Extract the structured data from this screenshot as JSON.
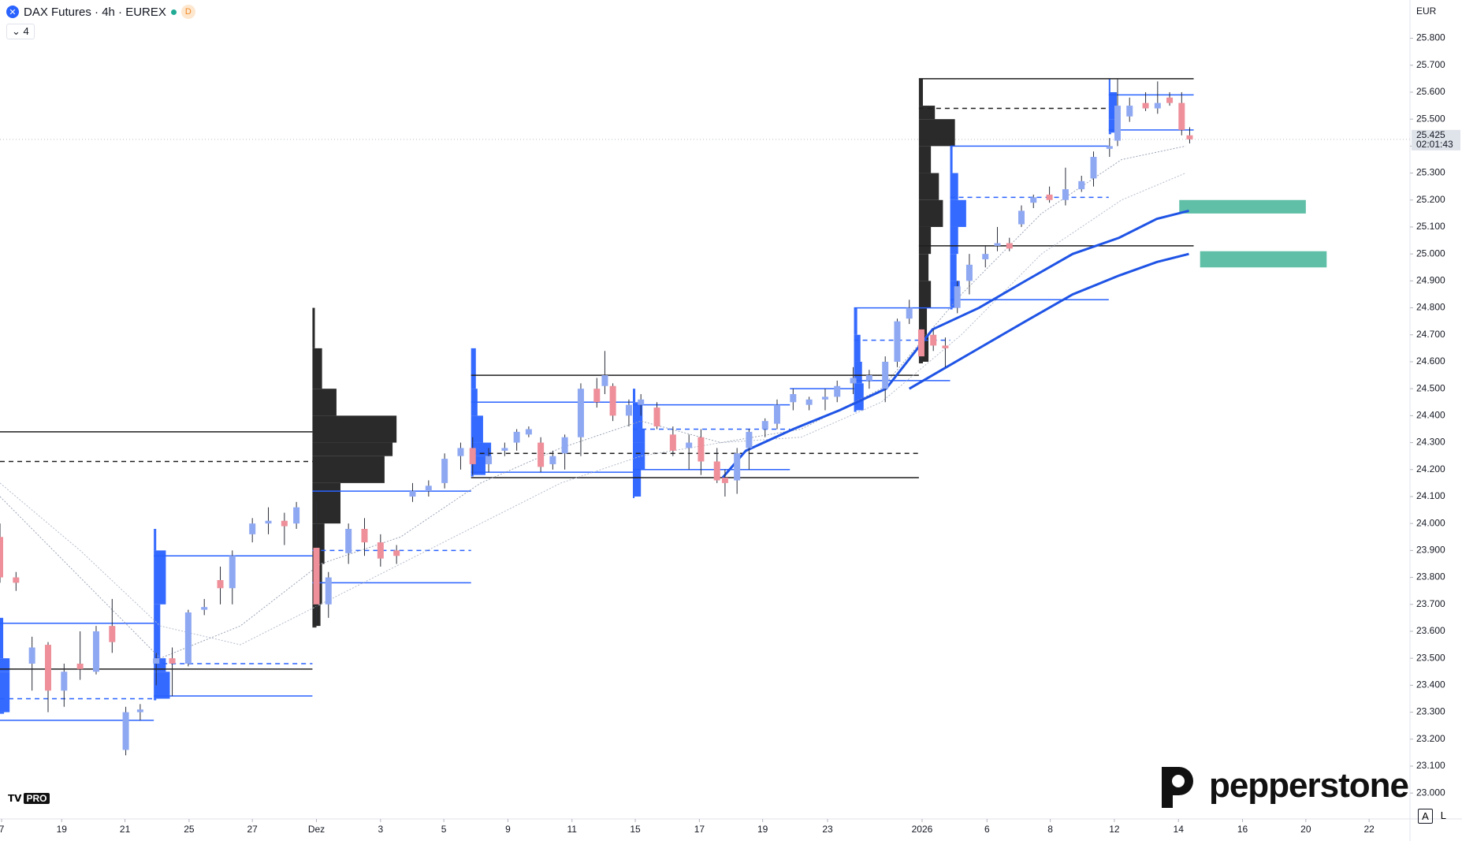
{
  "header": {
    "symbol": "DAX Futures · 4h · EUREX",
    "session": "D",
    "indicators": "4"
  },
  "price_axis": {
    "currency": "EUR",
    "last_price": {
      "value": 25425,
      "label": "25.425"
    },
    "countdown": "02:01:43"
  },
  "branding": {
    "broker": "pepperstone",
    "platform": "PRO"
  },
  "scale_buttons": [
    "A",
    "L"
  ],
  "chart_data": {
    "type": "candlestick",
    "ylim": [
      22904,
      25942
    ],
    "xlim": [
      0,
      176
    ],
    "yticks": [
      {
        "value": 23000,
        "label": "23.000"
      },
      {
        "value": 23100,
        "label": "23.100"
      },
      {
        "value": 23200,
        "label": "23.200"
      },
      {
        "value": 23300,
        "label": "23.300"
      },
      {
        "value": 23400,
        "label": "23.400"
      },
      {
        "value": 23500,
        "label": "23.500"
      },
      {
        "value": 23600,
        "label": "23.600"
      },
      {
        "value": 23700,
        "label": "23.700"
      },
      {
        "value": 23800,
        "label": "23.800"
      },
      {
        "value": 23900,
        "label": "23.900"
      },
      {
        "value": 24000,
        "label": "24.000"
      },
      {
        "value": 24100,
        "label": "24.100"
      },
      {
        "value": 24200,
        "label": "24.200"
      },
      {
        "value": 24300,
        "label": "24.300"
      },
      {
        "value": 24400,
        "label": "24.400"
      },
      {
        "value": 24500,
        "label": "24.500"
      },
      {
        "value": 24600,
        "label": "24.600"
      },
      {
        "value": 24700,
        "label": "24.700"
      },
      {
        "value": 24800,
        "label": "24.800"
      },
      {
        "value": 24900,
        "label": "24.900"
      },
      {
        "value": 25000,
        "label": "25.000"
      },
      {
        "value": 25100,
        "label": "25.100"
      },
      {
        "value": 25200,
        "label": "25.200"
      },
      {
        "value": 25300,
        "label": "25.300"
      },
      {
        "value": 25400,
        "label": "25.400"
      },
      {
        "value": 25500,
        "label": "25.500"
      },
      {
        "value": 25600,
        "label": "25.600"
      },
      {
        "value": 25700,
        "label": "25.700"
      },
      {
        "value": 25800,
        "label": "25.800"
      }
    ],
    "xticks": [
      {
        "value": 0.2,
        "label": "7"
      },
      {
        "value": 7.7,
        "label": "19"
      },
      {
        "value": 15.6,
        "label": "21"
      },
      {
        "value": 23.6,
        "label": "25"
      },
      {
        "value": 31.5,
        "label": "27"
      },
      {
        "value": 39.5,
        "label": "Dez"
      },
      {
        "value": 47.5,
        "label": "3"
      },
      {
        "value": 55.4,
        "label": "5"
      },
      {
        "value": 63.4,
        "label": "9"
      },
      {
        "value": 71.4,
        "label": "11"
      },
      {
        "value": 79.3,
        "label": "15"
      },
      {
        "value": 87.3,
        "label": "17"
      },
      {
        "value": 95.2,
        "label": "19"
      },
      {
        "value": 103.3,
        "label": "23"
      },
      {
        "value": 115.1,
        "label": "2026"
      },
      {
        "value": 123.2,
        "label": "6"
      },
      {
        "value": 131.1,
        "label": "8"
      },
      {
        "value": 139.1,
        "label": "12"
      },
      {
        "value": 147.1,
        "label": "14"
      },
      {
        "value": 155.1,
        "label": "16"
      },
      {
        "value": 163,
        "label": "20"
      },
      {
        "value": 170.9,
        "label": "22"
      }
    ],
    "up_color": "#8fa8f2",
    "down_color": "#ee8f9a",
    "x": [
      0,
      2,
      4,
      6,
      8,
      10,
      12,
      14,
      15.7,
      17.5,
      19.5,
      21.5,
      23.5,
      25.5,
      27.5,
      29,
      31.5,
      33.5,
      35.5,
      37,
      39.5,
      41,
      43.5,
      45.5,
      47.5,
      49.5,
      51.5,
      53.5,
      55.5,
      57.5,
      59,
      61,
      63,
      64.5,
      66,
      67.5,
      69,
      70.5,
      72.5,
      74.5,
      75.5,
      76.5,
      78.5,
      80,
      82,
      84,
      86,
      87.5,
      89.5,
      90.5,
      92,
      93.5,
      95.5,
      97,
      99,
      101,
      103,
      104.5,
      106.5,
      108.5,
      110.5,
      112,
      113.5,
      115,
      116.5,
      118,
      119.5,
      121,
      123,
      124.5,
      126,
      127.5,
      129,
      131,
      133,
      135,
      136.5,
      138.5,
      139.5,
      141,
      143,
      144.5,
      146,
      147.5,
      148.5
    ],
    "open": [
      23950,
      23800,
      23480,
      23550,
      23380,
      23480,
      23450,
      23620,
      23160,
      23300,
      23480,
      23500,
      23480,
      23680,
      23790,
      23760,
      23960,
      24000,
      24010,
      24000,
      23910,
      23700,
      23890,
      23980,
      23930,
      23900,
      24100,
      24120,
      24150,
      24250,
      24280,
      24220,
      24270,
      24300,
      24330,
      24300,
      24220,
      24260,
      24320,
      24500,
      24510,
      24510,
      24400,
      24440,
      24430,
      24330,
      24280,
      24320,
      24230,
      24170,
      24160,
      24280,
      24350,
      24370,
      24450,
      24440,
      24460,
      24470,
      24520,
      24530,
      24500,
      24600,
      24760,
      24720,
      24700,
      24660,
      24800,
      24900,
      24980,
      25030,
      25040,
      25110,
      25190,
      25220,
      25200,
      25240,
      25280,
      25390,
      25420,
      25510,
      25560,
      25540,
      25580,
      25560,
      25440
    ],
    "high": [
      24000,
      23820,
      23580,
      23560,
      23480,
      23600,
      23620,
      23720,
      23320,
      23330,
      23520,
      23540,
      23680,
      23720,
      23840,
      23900,
      24020,
      24060,
      24040,
      24080,
      24080,
      23820,
      24000,
      24020,
      23960,
      23920,
      24150,
      24160,
      24260,
      24300,
      24320,
      24280,
      24300,
      24350,
      24360,
      24320,
      24270,
      24330,
      24520,
      24540,
      24640,
      24520,
      24460,
      24480,
      24450,
      24360,
      24330,
      24350,
      24280,
      24200,
      24280,
      24350,
      24390,
      24460,
      24500,
      24470,
      24500,
      24530,
      24580,
      24570,
      24620,
      24760,
      24830,
      24740,
      24720,
      24690,
      24900,
      25000,
      25030,
      25100,
      25060,
      25180,
      25220,
      25250,
      25320,
      25290,
      25380,
      25430,
      25650,
      25580,
      25600,
      25640,
      25600,
      25600,
      25470
    ],
    "low": [
      23780,
      23750,
      23380,
      23300,
      23320,
      23420,
      23440,
      23520,
      23140,
      23270,
      23400,
      23360,
      23470,
      23660,
      23700,
      23700,
      23930,
      23960,
      23920,
      23980,
      23630,
      23650,
      23850,
      23880,
      23840,
      23850,
      24080,
      24100,
      24130,
      24200,
      24180,
      24190,
      24250,
      24270,
      24320,
      24190,
      24200,
      24200,
      24250,
      24430,
      24480,
      24380,
      24360,
      24400,
      24350,
      24250,
      24200,
      24180,
      24150,
      24100,
      24110,
      24200,
      24320,
      24350,
      24420,
      24420,
      24420,
      24450,
      24480,
      24500,
      24450,
      24580,
      24740,
      24600,
      24640,
      24580,
      24780,
      24850,
      24950,
      25010,
      25010,
      25100,
      25170,
      25190,
      25180,
      25230,
      25250,
      25360,
      25400,
      25490,
      25530,
      25520,
      25550,
      25440,
      25410
    ],
    "close": [
      23800,
      23780,
      23540,
      23380,
      23450,
      23460,
      23600,
      23560,
      23300,
      23310,
      23500,
      23480,
      23670,
      23690,
      23760,
      23880,
      24000,
      24010,
      23990,
      24060,
      23700,
      23800,
      23980,
      23930,
      23870,
      23880,
      24120,
      24140,
      24240,
      24280,
      24220,
      24250,
      24280,
      24340,
      24350,
      24210,
      24250,
      24320,
      24500,
      24450,
      24550,
      24400,
      24440,
      24460,
      24360,
      24270,
      24300,
      24230,
      24160,
      24150,
      24260,
      24340,
      24380,
      24440,
      24480,
      24460,
      24470,
      24510,
      24540,
      24550,
      24600,
      24750,
      24800,
      24620,
      24660,
      24650,
      24880,
      24960,
      25000,
      25040,
      25020,
      25160,
      25210,
      25200,
      25240,
      25270,
      25360,
      25400,
      25550,
      25550,
      25540,
      25560,
      25560,
      25460,
      25425
    ],
    "volume_profiles": [
      {
        "x": 39,
        "color": "#1f1f1f",
        "prices": [
          24800,
          24650,
          24500,
          24400,
          24300,
          24250,
          24150,
          24000,
          23850,
          23700,
          23620
        ],
        "widths": [
          0.3,
          1.2,
          3,
          10.5,
          10,
          9,
          3.5,
          1.5,
          1.2,
          1,
          0.5
        ]
      },
      {
        "x": 58.8,
        "color": "#2962ff",
        "prices": [
          24650,
          24500,
          24400,
          24300,
          24250,
          24180
        ],
        "widths": [
          0.6,
          0.8,
          1.5,
          2.5,
          1.8,
          0.3
        ]
      },
      {
        "x": 114.7,
        "color": "#1f1f1f",
        "prices": [
          25650,
          25550,
          25500,
          25400,
          25300,
          25200,
          25100,
          25000,
          24900,
          24800,
          24700,
          24600
        ],
        "widths": [
          0.5,
          2,
          4.5,
          1.5,
          2.5,
          3,
          1.5,
          1.2,
          1.5,
          1,
          1.2,
          0.5
        ]
      },
      {
        "x": 19.2,
        "color": "#2962ff",
        "prices": [
          23980,
          23900,
          23700,
          23500,
          23450,
          23350
        ],
        "widths": [
          0.3,
          1.5,
          0.8,
          1.5,
          2,
          0.3
        ]
      },
      {
        "x": 0,
        "color": "#2962ff",
        "prices": [
          23650,
          23500,
          23450,
          23300
        ],
        "widths": [
          0.4,
          1.2,
          1.2,
          0.5
        ]
      },
      {
        "x": 79,
        "color": "#2962ff",
        "prices": [
          24500,
          24450,
          24350,
          24300,
          24200,
          24100
        ],
        "widths": [
          0.3,
          1.2,
          1.5,
          1.5,
          1,
          0.2
        ]
      },
      {
        "x": 106.6,
        "color": "#2962ff",
        "prices": [
          24800,
          24700,
          24600,
          24520,
          24420
        ],
        "widths": [
          0.4,
          0.8,
          1,
          1.2,
          0.3
        ]
      },
      {
        "x": 118.6,
        "color": "#2962ff",
        "prices": [
          25400,
          25300,
          25200,
          25100,
          25000,
          24900,
          24800
        ],
        "widths": [
          0.3,
          1,
          2,
          1,
          0.8,
          1.2,
          0.3
        ]
      },
      {
        "x": 138.4,
        "color": "#2962ff",
        "prices": [
          25650,
          25600,
          25500,
          25450
        ],
        "widths": [
          0.2,
          1,
          0.8,
          0.3
        ]
      }
    ],
    "levels": [
      {
        "y": 24340,
        "x": [
          0,
          39
        ],
        "color": "#1f1f1f",
        "dashed": false
      },
      {
        "y": 24230,
        "x": [
          0,
          39
        ],
        "color": "#1f1f1f",
        "dashed": true
      },
      {
        "y": 23460,
        "x": [
          0,
          39
        ],
        "color": "#1f1f1f",
        "dashed": false
      },
      {
        "y": 23630,
        "x": [
          0,
          19.2
        ],
        "color": "#2962ff",
        "dashed": false
      },
      {
        "y": 23350,
        "x": [
          0,
          19.2
        ],
        "color": "#2962ff",
        "dashed": true
      },
      {
        "y": 23270,
        "x": [
          0,
          19.2
        ],
        "color": "#2962ff",
        "dashed": false
      },
      {
        "y": 23880,
        "x": [
          19.2,
          39
        ],
        "color": "#2962ff",
        "dashed": false
      },
      {
        "y": 23480,
        "x": [
          19.2,
          39
        ],
        "color": "#2962ff",
        "dashed": true
      },
      {
        "y": 23360,
        "x": [
          19.2,
          39
        ],
        "color": "#2962ff",
        "dashed": false
      },
      {
        "y": 24120,
        "x": [
          39,
          58.8
        ],
        "color": "#2962ff",
        "dashed": false
      },
      {
        "y": 23900,
        "x": [
          39,
          58.8
        ],
        "color": "#2962ff",
        "dashed": true
      },
      {
        "y": 23780,
        "x": [
          39,
          58.8
        ],
        "color": "#2962ff",
        "dashed": false
      },
      {
        "y": 24550,
        "x": [
          58.8,
          114.7
        ],
        "color": "#1f1f1f",
        "dashed": false
      },
      {
        "y": 24260,
        "x": [
          58.8,
          114.7
        ],
        "color": "#1f1f1f",
        "dashed": true
      },
      {
        "y": 24170,
        "x": [
          58.8,
          114.7
        ],
        "color": "#1f1f1f",
        "dashed": false
      },
      {
        "y": 24450,
        "x": [
          58.8,
          79
        ],
        "color": "#2962ff",
        "dashed": false
      },
      {
        "y": 24190,
        "x": [
          58.8,
          79
        ],
        "color": "#2962ff",
        "dashed": false
      },
      {
        "y": 24440,
        "x": [
          79,
          98.6
        ],
        "color": "#2962ff",
        "dashed": false
      },
      {
        "y": 24350,
        "x": [
          79,
          98.6
        ],
        "color": "#2962ff",
        "dashed": true
      },
      {
        "y": 24200,
        "x": [
          79,
          98.6
        ],
        "color": "#2962ff",
        "dashed": false
      },
      {
        "y": 24500,
        "x": [
          98.6,
          106.6
        ],
        "color": "#2962ff",
        "dashed": false
      },
      {
        "y": 24800,
        "x": [
          106.6,
          118.6
        ],
        "color": "#2962ff",
        "dashed": false
      },
      {
        "y": 24680,
        "x": [
          106.6,
          118.6
        ],
        "color": "#2962ff",
        "dashed": true
      },
      {
        "y": 24530,
        "x": [
          106.6,
          118.6
        ],
        "color": "#2962ff",
        "dashed": false
      },
      {
        "y": 25650,
        "x": [
          114.7,
          149
        ],
        "color": "#1f1f1f",
        "dashed": false
      },
      {
        "y": 25540,
        "x": [
          114.7,
          138.4
        ],
        "color": "#1f1f1f",
        "dashed": true
      },
      {
        "y": 25030,
        "x": [
          114.7,
          149
        ],
        "color": "#1f1f1f",
        "dashed": false
      },
      {
        "y": 25400,
        "x": [
          118.6,
          138.4
        ],
        "color": "#2962ff",
        "dashed": false
      },
      {
        "y": 25210,
        "x": [
          118.6,
          138.4
        ],
        "color": "#2962ff",
        "dashed": true
      },
      {
        "y": 24830,
        "x": [
          118.6,
          138.4
        ],
        "color": "#2962ff",
        "dashed": false
      },
      {
        "y": 25590,
        "x": [
          138.4,
          149
        ],
        "color": "#2962ff",
        "dashed": false
      },
      {
        "y": 25460,
        "x": [
          138.4,
          149
        ],
        "color": "#2962ff",
        "dashed": false
      }
    ],
    "zones": [
      {
        "y": [
          25150,
          25200
        ],
        "x": [
          147.2,
          163
        ],
        "color": "#5fbfa7"
      },
      {
        "y": [
          24950,
          25010
        ],
        "x": [
          149.8,
          165.6
        ],
        "color": "#5fbfa7"
      }
    ],
    "moving_averages": [
      {
        "color": "#9aa3b5",
        "x": [
          0,
          10,
          20,
          30,
          40,
          50,
          60,
          70,
          80,
          90,
          100,
          110,
          120,
          130,
          140,
          148
        ],
        "values": [
          24100,
          23800,
          23500,
          23620,
          23850,
          23950,
          24150,
          24280,
          24380,
          24300,
          24350,
          24500,
          24850,
          25150,
          25350,
          25400
        ]
      },
      {
        "color": "#b5bccb",
        "x": [
          0,
          10,
          20,
          30,
          40,
          50,
          60,
          70,
          80,
          90,
          100,
          110,
          120,
          130,
          140,
          148
        ],
        "values": [
          24150,
          23900,
          23620,
          23550,
          23700,
          23850,
          24000,
          24150,
          24250,
          24300,
          24320,
          24450,
          24700,
          25000,
          25200,
          25300
        ]
      }
    ],
    "bands": [
      {
        "color": "#1e53e5",
        "x": [
          90.2,
          93.1,
          99,
          104.8,
          110.6,
          116.4,
          122.2,
          128,
          133.9,
          139.7,
          144.4,
          148.4
        ],
        "values": [
          24170,
          24270,
          24350,
          24420,
          24500,
          24720,
          24800,
          24900,
          25000,
          25060,
          25130,
          25160
        ]
      },
      {
        "color": "#1e53e5",
        "x": [
          113.5,
          116.4,
          122.2,
          128,
          133.9,
          139.7,
          144.4,
          148.4
        ],
        "values": [
          24500,
          24550,
          24650,
          24750,
          24850,
          24920,
          24970,
          25000
        ]
      }
    ]
  }
}
